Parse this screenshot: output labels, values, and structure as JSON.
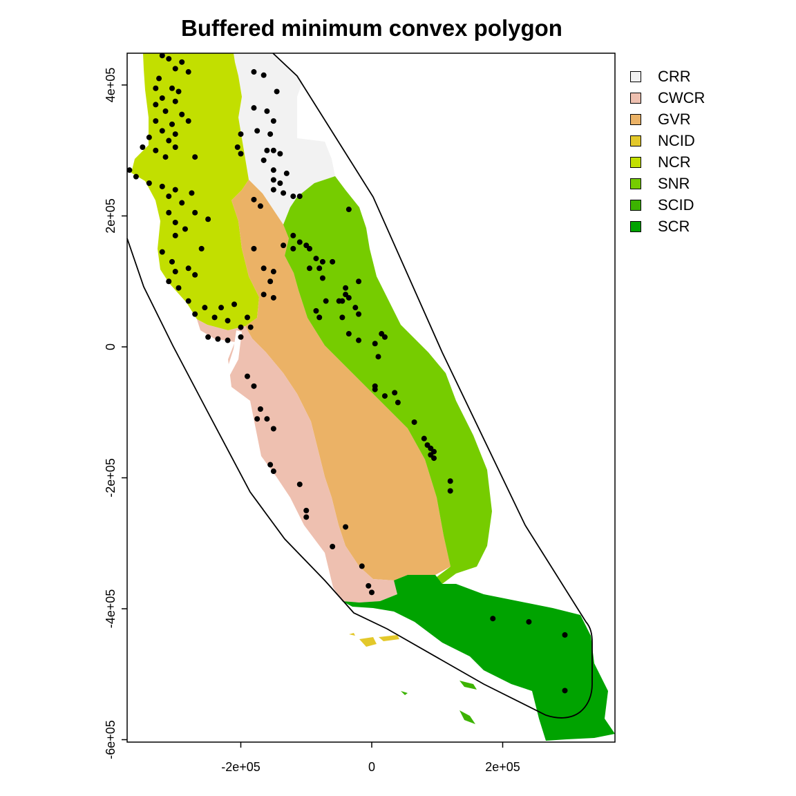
{
  "title": "Buffered minimum convex polygon",
  "axes": {
    "x_ticks": [
      {
        "value": -200000,
        "label": "-2e+05"
      },
      {
        "value": 0,
        "label": "0"
      },
      {
        "value": 200000,
        "label": "2e+05"
      }
    ],
    "y_ticks": [
      {
        "value": 400000,
        "label": "4e+05"
      },
      {
        "value": 200000,
        "label": "2e+05"
      },
      {
        "value": 0,
        "label": "0"
      },
      {
        "value": -200000,
        "label": "-2e+05"
      },
      {
        "value": -400000,
        "label": "-4e+05"
      },
      {
        "value": -600000,
        "label": "-6e+05"
      }
    ]
  },
  "legend": [
    {
      "label": "CRR",
      "color": "#f2f2f2"
    },
    {
      "label": "CWCR",
      "color": "#eec0b0"
    },
    {
      "label": "GVR",
      "color": "#ebb266"
    },
    {
      "label": "NCID",
      "color": "#e3c82a"
    },
    {
      "label": "NCR",
      "color": "#c2df00"
    },
    {
      "label": "SNR",
      "color": "#76cc00"
    },
    {
      "label": "SCID",
      "color": "#3cb300"
    },
    {
      "label": "SCR",
      "color": "#00a300"
    }
  ],
  "points": [
    [
      -320000,
      445000
    ],
    [
      -310000,
      440000
    ],
    [
      -290000,
      435000
    ],
    [
      -300000,
      425000
    ],
    [
      -280000,
      420000
    ],
    [
      -325000,
      410000
    ],
    [
      -330000,
      395000
    ],
    [
      -305000,
      395000
    ],
    [
      -295000,
      390000
    ],
    [
      -320000,
      380000
    ],
    [
      -300000,
      375000
    ],
    [
      -330000,
      370000
    ],
    [
      -315000,
      360000
    ],
    [
      -290000,
      355000
    ],
    [
      -280000,
      345000
    ],
    [
      -330000,
      345000
    ],
    [
      -305000,
      340000
    ],
    [
      -320000,
      330000
    ],
    [
      -300000,
      325000
    ],
    [
      -340000,
      320000
    ],
    [
      -310000,
      315000
    ],
    [
      -300000,
      305000
    ],
    [
      -330000,
      300000
    ],
    [
      -350000,
      305000
    ],
    [
      -315000,
      290000
    ],
    [
      -270000,
      290000
    ],
    [
      -370000,
      270000
    ],
    [
      -360000,
      260000
    ],
    [
      -340000,
      250000
    ],
    [
      -320000,
      245000
    ],
    [
      -300000,
      240000
    ],
    [
      -275000,
      235000
    ],
    [
      -310000,
      230000
    ],
    [
      -290000,
      220000
    ],
    [
      -310000,
      205000
    ],
    [
      -270000,
      205000
    ],
    [
      -300000,
      190000
    ],
    [
      -285000,
      180000
    ],
    [
      -300000,
      170000
    ],
    [
      -250000,
      195000
    ],
    [
      -320000,
      145000
    ],
    [
      -305000,
      130000
    ],
    [
      -280000,
      120000
    ],
    [
      -260000,
      150000
    ],
    [
      -300000,
      115000
    ],
    [
      -270000,
      110000
    ],
    [
      -310000,
      100000
    ],
    [
      -295000,
      90000
    ],
    [
      -280000,
      70000
    ],
    [
      -255000,
      60000
    ],
    [
      -230000,
      60000
    ],
    [
      -240000,
      45000
    ],
    [
      -210000,
      65000
    ],
    [
      -190000,
      45000
    ],
    [
      -220000,
      40000
    ],
    [
      -270000,
      50000
    ],
    [
      -200000,
      30000
    ],
    [
      -250000,
      15000
    ],
    [
      -235000,
      12000
    ],
    [
      -180000,
      420000
    ],
    [
      -165000,
      415000
    ],
    [
      -145000,
      390000
    ],
    [
      -180000,
      365000
    ],
    [
      -160000,
      360000
    ],
    [
      -150000,
      345000
    ],
    [
      -175000,
      330000
    ],
    [
      -155000,
      325000
    ],
    [
      -200000,
      325000
    ],
    [
      -205000,
      305000
    ],
    [
      -200000,
      295000
    ],
    [
      -160000,
      300000
    ],
    [
      -150000,
      300000
    ],
    [
      -140000,
      295000
    ],
    [
      -165000,
      285000
    ],
    [
      -150000,
      270000
    ],
    [
      -130000,
      265000
    ],
    [
      -150000,
      255000
    ],
    [
      -140000,
      250000
    ],
    [
      -150000,
      240000
    ],
    [
      -135000,
      235000
    ],
    [
      -120000,
      230000
    ],
    [
      -110000,
      230000
    ],
    [
      -180000,
      225000
    ],
    [
      -170000,
      215000
    ],
    [
      -35000,
      210000
    ],
    [
      -120000,
      170000
    ],
    [
      -110000,
      160000
    ],
    [
      -100000,
      155000
    ],
    [
      -95000,
      150000
    ],
    [
      -120000,
      150000
    ],
    [
      -135000,
      155000
    ],
    [
      -85000,
      135000
    ],
    [
      -75000,
      130000
    ],
    [
      -80000,
      120000
    ],
    [
      -60000,
      130000
    ],
    [
      -95000,
      120000
    ],
    [
      -75000,
      105000
    ],
    [
      -20000,
      100000
    ],
    [
      -180000,
      150000
    ],
    [
      -165000,
      120000
    ],
    [
      -150000,
      115000
    ],
    [
      -155000,
      100000
    ],
    [
      -165000,
      80000
    ],
    [
      -150000,
      75000
    ],
    [
      -40000,
      90000
    ],
    [
      -40000,
      80000
    ],
    [
      -35000,
      75000
    ],
    [
      -50000,
      70000
    ],
    [
      -45000,
      70000
    ],
    [
      -25000,
      60000
    ],
    [
      -70000,
      70000
    ],
    [
      -85000,
      55000
    ],
    [
      -80000,
      45000
    ],
    [
      -45000,
      45000
    ],
    [
      -20000,
      50000
    ],
    [
      -185000,
      30000
    ],
    [
      -200000,
      15000
    ],
    [
      -220000,
      10000
    ],
    [
      -35000,
      20000
    ],
    [
      15000,
      20000
    ],
    [
      20000,
      15000
    ],
    [
      5000,
      5000
    ],
    [
      -20000,
      10000
    ],
    [
      10000,
      -15000
    ],
    [
      5000,
      -60000
    ],
    [
      5000,
      -65000
    ],
    [
      20000,
      -75000
    ],
    [
      35000,
      -70000
    ],
    [
      40000,
      -85000
    ],
    [
      -190000,
      -45000
    ],
    [
      -180000,
      -60000
    ],
    [
      -170000,
      -95000
    ],
    [
      -175000,
      -110000
    ],
    [
      -160000,
      -110000
    ],
    [
      -150000,
      -125000
    ],
    [
      -155000,
      -180000
    ],
    [
      -150000,
      -190000
    ],
    [
      -110000,
      -210000
    ],
    [
      -100000,
      -250000
    ],
    [
      -100000,
      -260000
    ],
    [
      -40000,
      -275000
    ],
    [
      -60000,
      -305000
    ],
    [
      -15000,
      -335000
    ],
    [
      -5000,
      -365000
    ],
    [
      0,
      -375000
    ],
    [
      65000,
      -115000
    ],
    [
      80000,
      -140000
    ],
    [
      85000,
      -150000
    ],
    [
      90000,
      -155000
    ],
    [
      95000,
      -160000
    ],
    [
      90000,
      -165000
    ],
    [
      95000,
      -170000
    ],
    [
      120000,
      -205000
    ],
    [
      120000,
      -220000
    ],
    [
      185000,
      -415000
    ],
    [
      240000,
      -420000
    ],
    [
      295000,
      -440000
    ],
    [
      295000,
      -525000
    ]
  ]
}
